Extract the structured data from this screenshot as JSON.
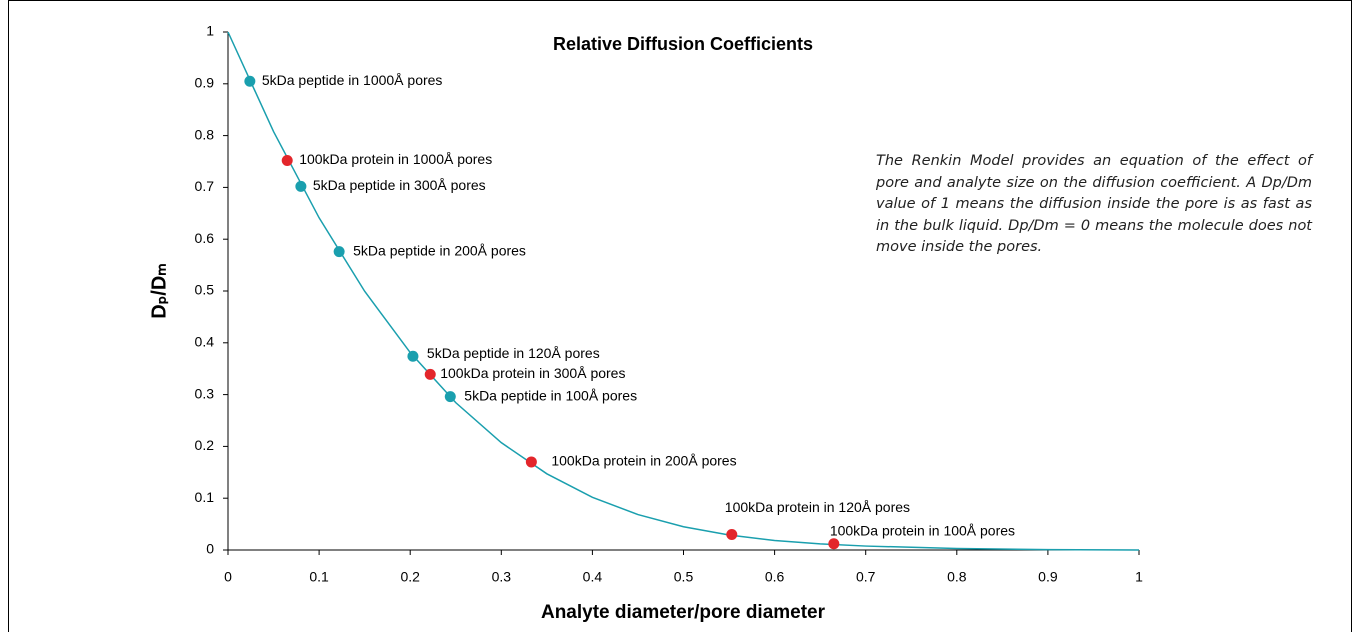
{
  "chart_data": {
    "type": "line",
    "title": "Relative Diffusion Coefficients",
    "x_label": "Analyte diameter/pore diameter",
    "y_label": "Dₚ/Dₘ",
    "annotation": "The Renkin Model provides an equation of the effect of pore and analyte size on the diffusion coefficient. A Dp/Dm value of 1 means the diffusion inside the pore is as fast as in the bulk liquid. Dp/Dm = 0 means the molecule does not move inside the pores.",
    "xlim": [
      0,
      1
    ],
    "ylim": [
      0,
      1
    ],
    "xticks": [
      0,
      0.1,
      0.2,
      0.3,
      0.4,
      0.5,
      0.6,
      0.7,
      0.8,
      0.9,
      1
    ],
    "yticks": [
      0,
      0.1,
      0.2,
      0.3,
      0.4,
      0.5,
      0.6,
      0.7,
      0.8,
      0.9,
      1
    ],
    "series": [
      {
        "color": "#1a9fae",
        "x": [
          0,
          0.05,
          0.1,
          0.15,
          0.2,
          0.25,
          0.3,
          0.35,
          0.4,
          0.45,
          0.5,
          0.55,
          0.6,
          0.65,
          0.7,
          0.8,
          0.9,
          1
        ],
        "values": [
          1,
          0.8078,
          0.6413,
          0.4995,
          0.3812,
          0.2845,
          0.2072,
          0.1471,
          0.1017,
          0.0684,
          0.0449,
          0.0289,
          0.0184,
          0.0118,
          0.0076,
          0.003,
          0.0007,
          0
        ]
      }
    ],
    "points": {
      "labels": [
        "5kDa peptide in 1000Å pores",
        "100kDa protein in 1000Å pores",
        "5kDa peptide in 300Å pores",
        "5kDa peptide in 200Å pores",
        "5kDa peptide in 120Å pores",
        "100kDa protein in 300Å pores",
        "5kDa peptide in 100Å pores",
        "100kDa protein in 200Å pores",
        "100kDa protein in 120Å pores",
        "100kDa protein in 100Å pores"
      ],
      "x": [
        0.024,
        0.065,
        0.08,
        0.122,
        0.203,
        0.222,
        0.244,
        0.333,
        0.553,
        0.665
      ],
      "values": [
        0.905,
        0.752,
        0.702,
        0.576,
        0.374,
        0.339,
        0.296,
        0.17,
        0.03,
        0.012
      ],
      "colors": [
        "#1a9fae",
        "#e3262b",
        "#1a9fae",
        "#1a9fae",
        "#1a9fae",
        "#e3262b",
        "#1a9fae",
        "#e3262b",
        "#e3262b",
        "#e3262b"
      ]
    }
  }
}
